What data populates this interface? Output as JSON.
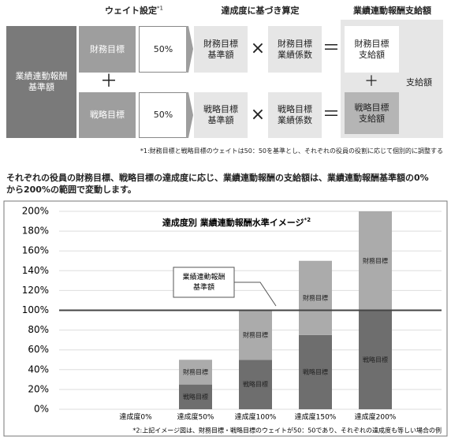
{
  "diagram": {
    "headers": [
      {
        "text": "ウェイト設定",
        "note": "*1"
      },
      {
        "text": "達成度に基づき算定"
      },
      {
        "text": "業績連動報酬支給額"
      }
    ],
    "base_box": "業績連動報酬\n基準額",
    "rows": [
      {
        "goal": "財務目標",
        "weight": "50%",
        "base": "財務目標\n基準額",
        "coefficient": "財務目標\n業績係数",
        "payout": "財務目標\n支給額"
      },
      {
        "goal": "戦略目標",
        "weight": "50%",
        "base": "戦略目標\n基準額",
        "coefficient": "戦略目標\n業績係数",
        "payout": "戦略目標\n支給額"
      }
    ],
    "operators": {
      "plus": "＋",
      "times": "×",
      "equals": "＝"
    },
    "payout_label": "支給額",
    "footnote": "*1:財務目標と戦略目標のウェイトは50：50を基準とし、それぞれの役員の役割に応じて個別的に調整する"
  },
  "paragraph": [
    "それぞれの役員の財務目標、戦略目標の達成度に応じ、業績連動報酬の支給額は、業績連動報酬基準額の0%",
    "から200%の範囲で変動します。"
  ],
  "chart_data": {
    "type": "stacked-bar",
    "title": "達成度別 業績連動報酬水準イメージ",
    "title_note": "*2",
    "categories": [
      "達成度0%",
      "達成度50%",
      "達成度100%",
      "達成度150%",
      "達成度200%"
    ],
    "series": [
      {
        "name": "戦略目標",
        "color": "#6e6e6e",
        "values": [
          0,
          25,
          50,
          75,
          100
        ]
      },
      {
        "name": "財務目標",
        "color": "#ababab",
        "values": [
          0,
          25,
          50,
          75,
          100
        ]
      }
    ],
    "ylim": [
      0,
      200
    ],
    "yticks": [
      {
        "value": 0,
        "label": "0%"
      },
      {
        "value": 20,
        "label": "20%"
      },
      {
        "value": 40,
        "label": "40%"
      },
      {
        "value": 60,
        "label": "60%"
      },
      {
        "value": 80,
        "label": "80%"
      },
      {
        "value": 100,
        "label": "100%"
      },
      {
        "value": 120,
        "label": "120%"
      },
      {
        "value": 140,
        "label": "140%"
      },
      {
        "value": 160,
        "label": "160%"
      },
      {
        "value": 180,
        "label": "180%"
      },
      {
        "value": 200,
        "label": "200%"
      }
    ],
    "reference_line": 100,
    "grid": true,
    "annotation": "業績連動報酬\n基準額",
    "note": "*2:上記イメージ図は、財務目標・戦略目標のウェイトが50：50であり、それぞれの達成度も等しい場合の例"
  }
}
